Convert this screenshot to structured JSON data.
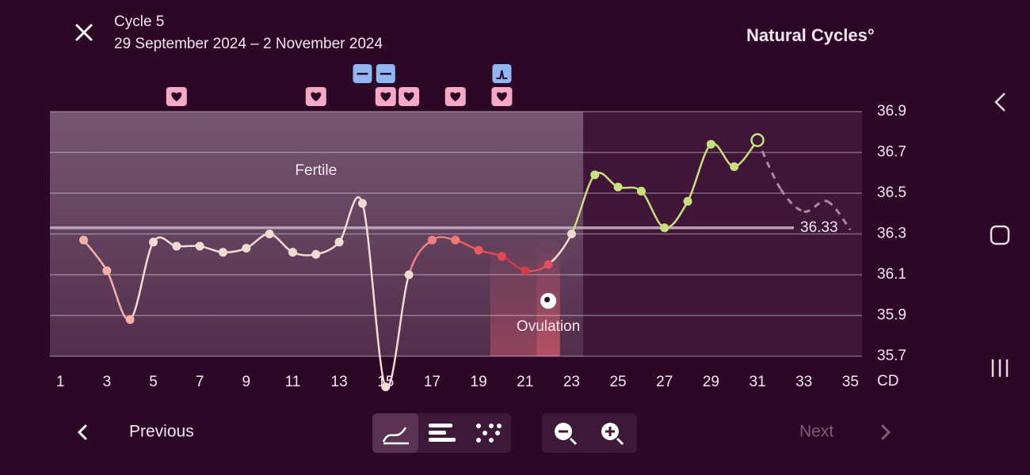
{
  "header": {
    "title": "Cycle 5",
    "date_range": "29 September 2024 – 2 November 2024",
    "brand": "Natural Cycles°"
  },
  "chart_data": {
    "type": "line",
    "x": [
      2,
      3,
      4,
      5,
      6,
      7,
      8,
      9,
      10,
      11,
      12,
      13,
      14,
      15,
      16,
      17,
      18,
      19,
      20,
      21,
      22,
      23,
      24,
      25,
      26,
      27,
      28,
      29,
      30,
      31
    ],
    "values": [
      36.27,
      36.12,
      35.88,
      36.26,
      36.24,
      36.24,
      36.21,
      36.23,
      36.3,
      36.21,
      36.2,
      36.26,
      36.45,
      35.55,
      36.1,
      36.27,
      36.27,
      36.22,
      36.19,
      36.12,
      36.15,
      36.3,
      36.59,
      36.53,
      36.51,
      36.33,
      36.46,
      36.74,
      36.63,
      36.76
    ],
    "point_colors": [
      "#f5b0a8",
      "#f5b0a8",
      "#f5b0a8",
      "#efdcd2",
      "#efdcd2",
      "#efdcd2",
      "#efdcd2",
      "#efdcd2",
      "#efdcd2",
      "#efdcd2",
      "#efdcd2",
      "#efdcd2",
      "#efdcd2",
      "#efdcd2",
      "#efdcd2",
      "#f08080",
      "#f07a78",
      "#e65c5e",
      "#e04a50",
      "#d83a42",
      "#e05058",
      "#efdcd2",
      "#c8e07c",
      "#c8e07c",
      "#c8e07c",
      "#c8e07c",
      "#c8e07c",
      "#c8e07c",
      "#c8e07c",
      "#c8e07c"
    ],
    "open_points": [
      31
    ],
    "prediction": {
      "x": [
        31,
        32,
        33,
        34,
        35
      ],
      "values": [
        36.76,
        36.52,
        36.41,
        36.46,
        36.32
      ],
      "color": "#a88aa0"
    },
    "coverline": 36.33,
    "fertile_label": "Fertile",
    "fertile_range": [
      1,
      23
    ],
    "ovulation_label": "Ovulation",
    "ovulation_range": [
      20,
      22
    ],
    "ovulation_day": 22,
    "sex_days": [
      6,
      12,
      15,
      16,
      18,
      20
    ],
    "negative_test_days": [
      14,
      15
    ],
    "lh_test_days": [
      20
    ],
    "x_unit": "CD",
    "xlim": [
      0.55,
      35.5
    ],
    "xticks": [
      1,
      3,
      5,
      7,
      9,
      11,
      13,
      15,
      17,
      19,
      21,
      23,
      25,
      27,
      29,
      31,
      33,
      35
    ],
    "ylim": [
      35.7,
      36.9
    ],
    "yticks": [
      35.7,
      35.9,
      36.1,
      36.3,
      36.5,
      36.7,
      36.9
    ],
    "grid": true
  },
  "footer": {
    "previous": "Previous",
    "next": "Next"
  }
}
